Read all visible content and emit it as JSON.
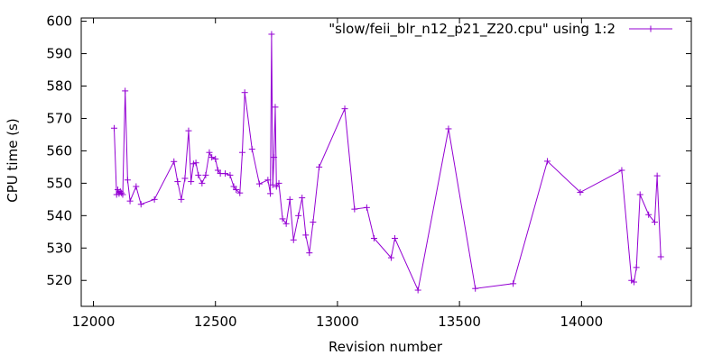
{
  "chart_data": {
    "type": "line",
    "xlabel": "Revision number",
    "ylabel": "CPU time (s)",
    "xlim": [
      11950,
      14450
    ],
    "ylim": [
      512,
      601
    ],
    "x_ticks": [
      12000,
      12500,
      13000,
      13500,
      14000
    ],
    "y_ticks": [
      520,
      530,
      540,
      550,
      560,
      570,
      580,
      590,
      600
    ],
    "grid": false,
    "legend_position": "top-right",
    "colors": {
      "series": "#9400d3",
      "axes": "#000000"
    },
    "series": [
      {
        "name": "\"slow/feii_blr_n12_p21_Z20.cpu\" using 1:2",
        "marker": "plus",
        "x": [
          12085,
          12095,
          12100,
          12105,
          12110,
          12115,
          12120,
          12130,
          12140,
          12150,
          12175,
          12195,
          12250,
          12330,
          12345,
          12360,
          12375,
          12390,
          12400,
          12410,
          12420,
          12430,
          12445,
          12460,
          12475,
          12485,
          12500,
          12510,
          12520,
          12540,
          12560,
          12575,
          12585,
          12600,
          12610,
          12620,
          12650,
          12680,
          12715,
          12725,
          12730,
          12735,
          12740,
          12745,
          12750,
          12760,
          12775,
          12790,
          12805,
          12820,
          12840,
          12855,
          12870,
          12885,
          12900,
          12925,
          13030,
          13070,
          13120,
          13150,
          13220,
          13235,
          13330,
          13455,
          13565,
          13720,
          13860,
          13995,
          14165,
          14205,
          14215,
          14225,
          14240,
          14275,
          14300,
          14310,
          14325
        ],
        "y": [
          567,
          546.5,
          548,
          546.8,
          547.5,
          547,
          546.5,
          578.5,
          551,
          544.5,
          549,
          543.5,
          545,
          556.7,
          550.5,
          545,
          551.5,
          566.2,
          550.5,
          556,
          556.3,
          552.5,
          550,
          552.5,
          559.5,
          558,
          557.5,
          554,
          553,
          553,
          552.5,
          549,
          548,
          547,
          559.5,
          578,
          560.5,
          549.8,
          551,
          546.8,
          596,
          549.5,
          558,
          573.5,
          549,
          550,
          539,
          537.5,
          545,
          532.5,
          540,
          545.5,
          534,
          528.5,
          538,
          555,
          573,
          542,
          542.5,
          533,
          527,
          533,
          517,
          566.8,
          517.5,
          519,
          556.8,
          547.2,
          554,
          520,
          519.5,
          524,
          546.5,
          540.3,
          538,
          552.3,
          527.3
        ]
      }
    ]
  }
}
